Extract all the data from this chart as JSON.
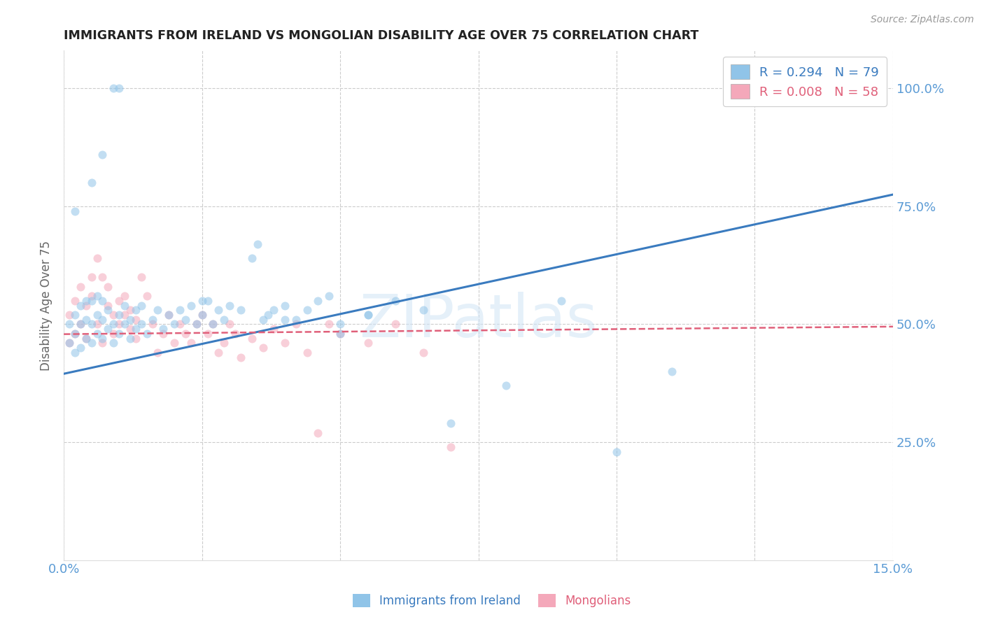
{
  "title": "IMMIGRANTS FROM IRELAND VS MONGOLIAN DISABILITY AGE OVER 75 CORRELATION CHART",
  "source": "Source: ZipAtlas.com",
  "ylabel": "Disability Age Over 75",
  "xlim": [
    0.0,
    0.15
  ],
  "ylim": [
    0.0,
    1.08
  ],
  "yticks": [
    0.25,
    0.5,
    0.75,
    1.0
  ],
  "ytick_labels": [
    "25.0%",
    "50.0%",
    "75.0%",
    "100.0%"
  ],
  "xticks": [
    0.0,
    0.025,
    0.05,
    0.075,
    0.1,
    0.125,
    0.15
  ],
  "blue_R": 0.294,
  "blue_N": 79,
  "pink_R": 0.008,
  "pink_N": 58,
  "blue_color": "#90c4e8",
  "pink_color": "#f4a8ba",
  "blue_line_color": "#3a7bbf",
  "pink_line_color": "#e0607a",
  "grid_color": "#cccccc",
  "axis_label_color": "#5b9bd5",
  "title_color": "#222222",
  "source_color": "#999999",
  "watermark_text": "ZIPatlas",
  "watermark_color": "#d0e4f5",
  "blue_line_x0": 0.0,
  "blue_line_y0": 0.395,
  "blue_line_x1": 0.15,
  "blue_line_y1": 0.775,
  "pink_line_x0": 0.0,
  "pink_line_y0": 0.479,
  "pink_line_x1": 0.15,
  "pink_line_y1": 0.495,
  "blue_x": [
    0.001,
    0.001,
    0.002,
    0.002,
    0.002,
    0.003,
    0.003,
    0.003,
    0.004,
    0.004,
    0.004,
    0.005,
    0.005,
    0.005,
    0.006,
    0.006,
    0.006,
    0.007,
    0.007,
    0.007,
    0.008,
    0.008,
    0.009,
    0.009,
    0.01,
    0.01,
    0.011,
    0.011,
    0.012,
    0.012,
    0.013,
    0.013,
    0.014,
    0.014,
    0.015,
    0.016,
    0.017,
    0.018,
    0.019,
    0.02,
    0.021,
    0.022,
    0.023,
    0.024,
    0.025,
    0.026,
    0.027,
    0.028,
    0.029,
    0.03,
    0.032,
    0.034,
    0.036,
    0.038,
    0.04,
    0.042,
    0.044,
    0.046,
    0.048,
    0.05,
    0.055,
    0.06,
    0.065,
    0.07,
    0.08,
    0.09,
    0.1,
    0.11,
    0.035,
    0.037,
    0.04,
    0.05,
    0.055,
    0.025,
    0.005,
    0.007,
    0.009,
    0.01,
    0.002
  ],
  "blue_y": [
    0.46,
    0.5,
    0.44,
    0.48,
    0.52,
    0.45,
    0.5,
    0.54,
    0.47,
    0.51,
    0.55,
    0.46,
    0.5,
    0.55,
    0.48,
    0.52,
    0.56,
    0.47,
    0.51,
    0.55,
    0.49,
    0.53,
    0.46,
    0.5,
    0.48,
    0.52,
    0.5,
    0.54,
    0.47,
    0.51,
    0.49,
    0.53,
    0.5,
    0.54,
    0.48,
    0.51,
    0.53,
    0.49,
    0.52,
    0.5,
    0.53,
    0.51,
    0.54,
    0.5,
    0.52,
    0.55,
    0.5,
    0.53,
    0.51,
    0.54,
    0.53,
    0.64,
    0.51,
    0.53,
    0.54,
    0.51,
    0.53,
    0.55,
    0.56,
    0.48,
    0.52,
    0.55,
    0.53,
    0.29,
    0.37,
    0.55,
    0.23,
    0.4,
    0.67,
    0.52,
    0.51,
    0.5,
    0.52,
    0.55,
    0.8,
    0.86,
    1.0,
    1.0,
    0.74
  ],
  "pink_x": [
    0.001,
    0.001,
    0.002,
    0.002,
    0.003,
    0.003,
    0.004,
    0.004,
    0.005,
    0.005,
    0.006,
    0.006,
    0.007,
    0.007,
    0.008,
    0.008,
    0.009,
    0.009,
    0.01,
    0.01,
    0.011,
    0.011,
    0.012,
    0.012,
    0.013,
    0.013,
    0.014,
    0.015,
    0.016,
    0.017,
    0.018,
    0.019,
    0.02,
    0.021,
    0.022,
    0.023,
    0.024,
    0.025,
    0.026,
    0.027,
    0.028,
    0.029,
    0.03,
    0.031,
    0.032,
    0.034,
    0.036,
    0.038,
    0.04,
    0.042,
    0.044,
    0.046,
    0.048,
    0.05,
    0.055,
    0.06,
    0.065,
    0.07
  ],
  "pink_y": [
    0.46,
    0.52,
    0.48,
    0.55,
    0.5,
    0.58,
    0.47,
    0.54,
    0.6,
    0.56,
    0.5,
    0.64,
    0.46,
    0.6,
    0.54,
    0.58,
    0.48,
    0.52,
    0.5,
    0.55,
    0.52,
    0.56,
    0.49,
    0.53,
    0.47,
    0.51,
    0.6,
    0.56,
    0.5,
    0.44,
    0.48,
    0.52,
    0.46,
    0.5,
    0.48,
    0.46,
    0.5,
    0.52,
    0.48,
    0.5,
    0.44,
    0.46,
    0.5,
    0.48,
    0.43,
    0.47,
    0.45,
    0.49,
    0.46,
    0.5,
    0.44,
    0.27,
    0.5,
    0.48,
    0.46,
    0.5,
    0.44,
    0.24
  ],
  "marker_size": 75,
  "marker_alpha": 0.55,
  "background_color": "#ffffff"
}
